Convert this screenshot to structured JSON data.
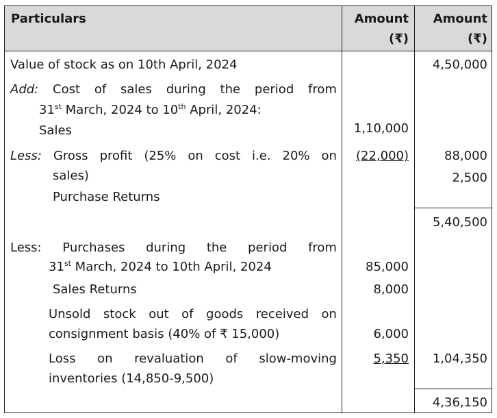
{
  "header": {
    "particulars": "Particulars",
    "amount1_line1": "Amount",
    "amount1_line2": "(₹)",
    "amount2_line1": "Amount",
    "amount2_line2": "(₹)"
  },
  "rows": {
    "stock_label": "Value of stock as on 10th April, 2024",
    "stock_amount": "4,50,000",
    "add_label": "Add:",
    "add_words": [
      "Cost",
      "of",
      "sales",
      "during",
      "the",
      "period",
      "from"
    ],
    "add_line2_a": "31",
    "add_line2_sup1": "st",
    "add_line2_b": " March, 2024 to 10",
    "add_line2_sup2": "th",
    "add_line2_c": " April, 2024:",
    "sales_label": "Sales",
    "sales_amount": "1,10,000",
    "less1_label": "Less:",
    "less1_words": [
      "Gross",
      "profit",
      "(25%",
      "on",
      "cost",
      "i.e.",
      "20%",
      "on"
    ],
    "less1_line2": "sales)",
    "gp_amount": "(22,000)",
    "cost_of_sales_amount": "88,000",
    "purchase_returns_amount": "2,500",
    "purchase_returns_label": "Purchase Returns",
    "subtotal": "5,40,500",
    "less2_words": [
      "Less:",
      "Purchases",
      "during",
      "the",
      "period",
      "from"
    ],
    "less2_line2_a": "31",
    "less2_line2_sup": "st",
    "less2_line2_b": " March, 2024 to 10th April, 2024",
    "purchases_amount": "85,000",
    "sales_returns_label": "Sales Returns",
    "sales_returns_amount": "8,000",
    "unsold_words": [
      "Unsold",
      "stock",
      "out",
      "of",
      "goods",
      "received",
      "on"
    ],
    "unsold_line2": "consignment basis (40% of ₹ 15,000)",
    "unsold_amount": "6,000",
    "loss_words": [
      "Loss",
      "on",
      "revaluation",
      "of",
      "slow-moving"
    ],
    "loss_line2": "inventories (14,850-9,500)",
    "loss_amount": "5,350",
    "less_total": "1,04,350",
    "final_total": "4,36,150"
  }
}
